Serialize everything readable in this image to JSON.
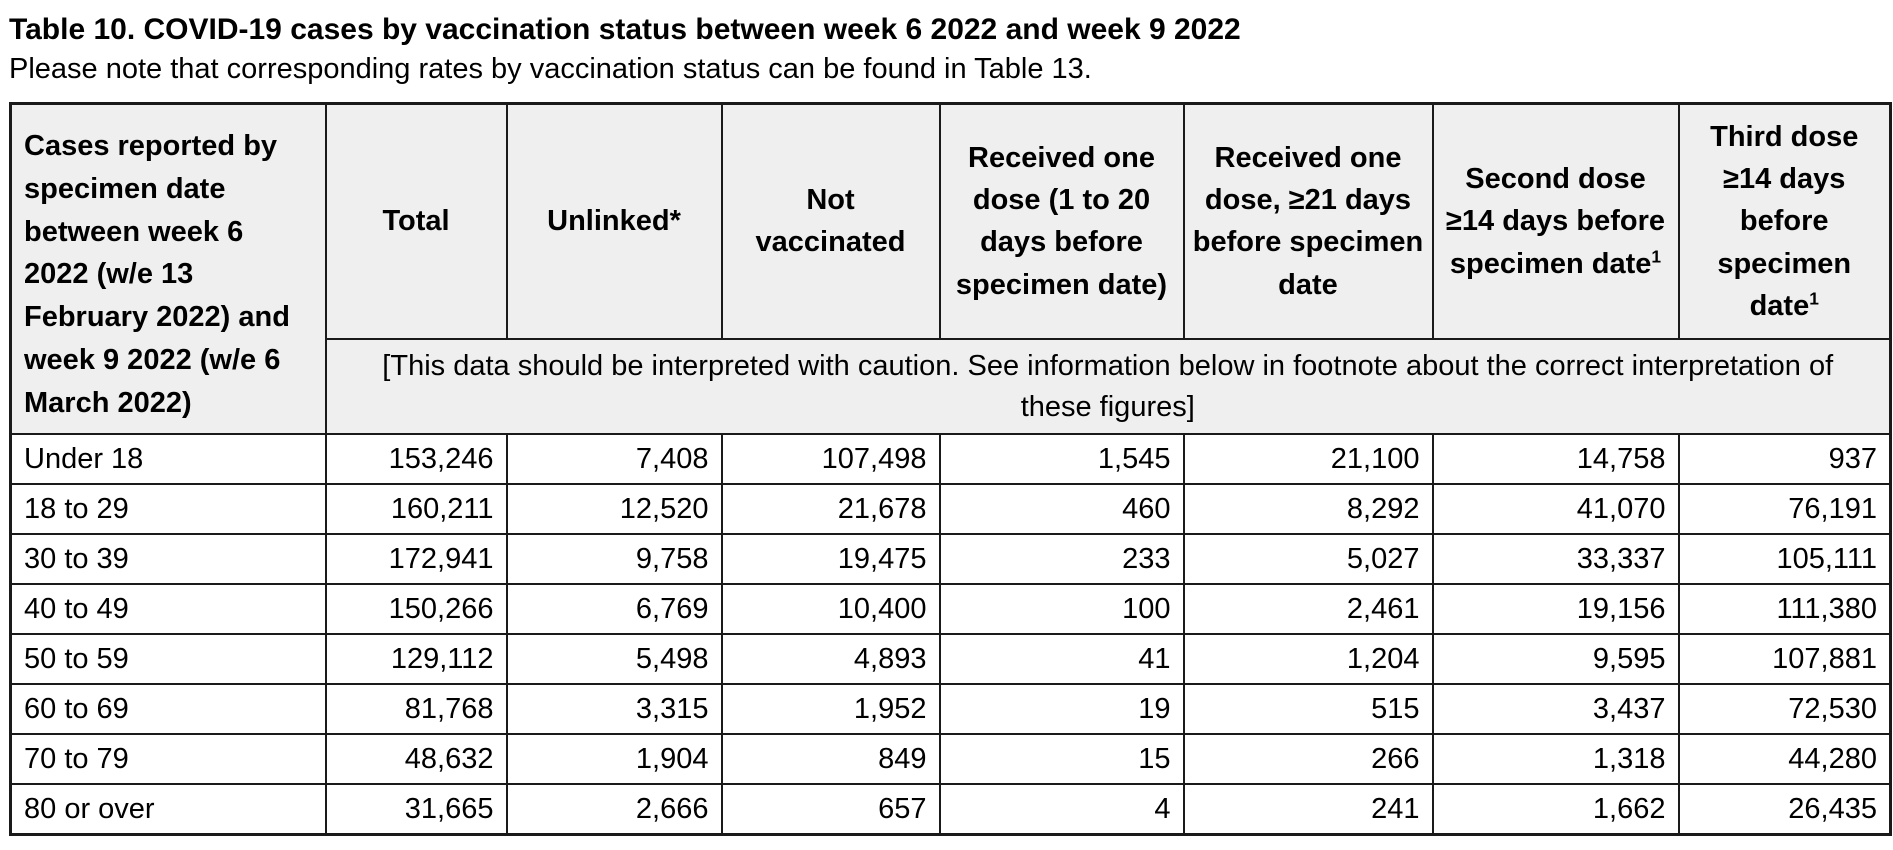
{
  "page": {
    "title": "Table 10. COVID-19 cases by vaccination status between week 6 2022 and week 9 2022",
    "subtitle": "Please note that corresponding rates by vaccination status can be found in Table 13."
  },
  "table": {
    "row_header": "Cases reported by specimen date between week 6 2022 (w/e 13 February 2022) and week 9 2022 (w/e 6 March 2022)",
    "columns": [
      {
        "label": "Total",
        "sup": ""
      },
      {
        "label": "Unlinked*",
        "sup": ""
      },
      {
        "label": "Not vaccinated",
        "sup": ""
      },
      {
        "label": "Received one dose (1 to 20 days before specimen date)",
        "sup": ""
      },
      {
        "label": "Received one dose, ≥21 days before specimen date",
        "sup": ""
      },
      {
        "label": "Second dose ≥14 days before specimen date",
        "sup": "1"
      },
      {
        "label": "Third dose ≥14 days before specimen date",
        "sup": "1"
      }
    ],
    "caution_note": "[This data should be interpreted with caution. See information below in footnote about the correct interpretation of these figures]",
    "rows": [
      {
        "label": "Under 18",
        "values": [
          "153,246",
          "7,408",
          "107,498",
          "1,545",
          "21,100",
          "14,758",
          "937"
        ]
      },
      {
        "label": "18 to 29",
        "values": [
          "160,211",
          "12,520",
          "21,678",
          "460",
          "8,292",
          "41,070",
          "76,191"
        ]
      },
      {
        "label": "30 to 39",
        "values": [
          "172,941",
          "9,758",
          "19,475",
          "233",
          "5,027",
          "33,337",
          "105,111"
        ]
      },
      {
        "label": "40 to 49",
        "values": [
          "150,266",
          "6,769",
          "10,400",
          "100",
          "2,461",
          "19,156",
          "111,380"
        ]
      },
      {
        "label": "50 to 59",
        "values": [
          "129,112",
          "5,498",
          "4,893",
          "41",
          "1,204",
          "9,595",
          "107,881"
        ]
      },
      {
        "label": "60 to 69",
        "values": [
          "81,768",
          "3,315",
          "1,952",
          "19",
          "515",
          "3,437",
          "72,530"
        ]
      },
      {
        "label": "70 to 79",
        "values": [
          "48,632",
          "1,904",
          "849",
          "15",
          "266",
          "1,318",
          "44,280"
        ]
      },
      {
        "label": "80 or over",
        "values": [
          "31,665",
          "2,666",
          "657",
          "4",
          "241",
          "1,662",
          "26,435"
        ]
      }
    ],
    "colors": {
      "header_bg": "#efefef",
      "border": "#1a1a1a",
      "text": "#000000",
      "page_bg": "#ffffff"
    }
  }
}
